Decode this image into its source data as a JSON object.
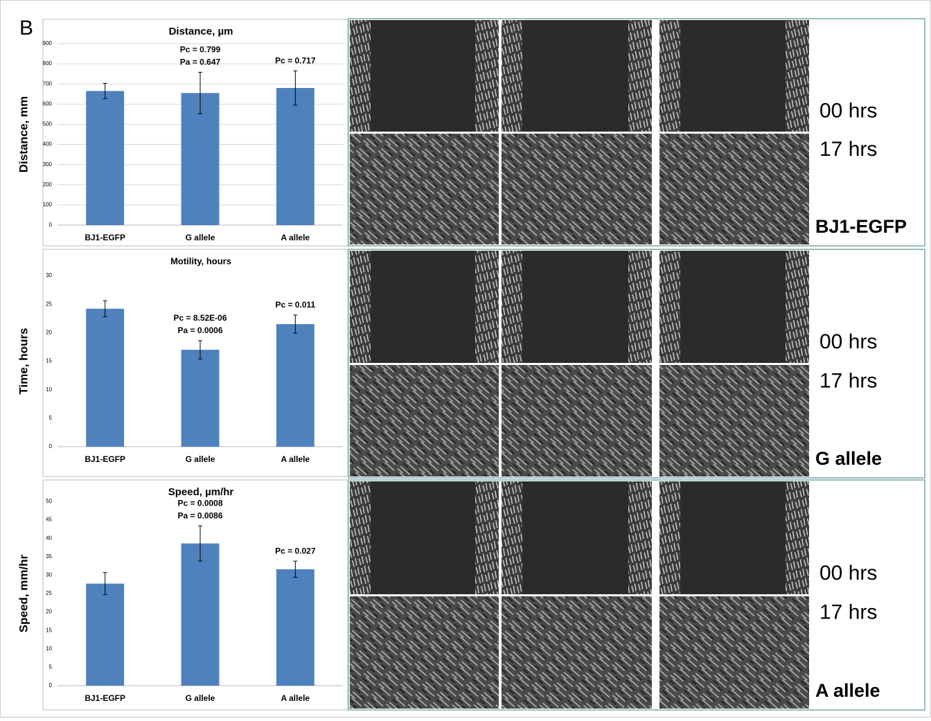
{
  "panel_label": "B",
  "chart_data": [
    {
      "type": "bar",
      "title": "Distance, µm",
      "y_label": "Distance, mm",
      "categories": [
        "BJ1-EGFP",
        "G allele",
        "A allele"
      ],
      "values": [
        665,
        655,
        680
      ],
      "errors": [
        38,
        103,
        85
      ],
      "color": "#4f81bd",
      "ylim": [
        0,
        900
      ],
      "yticks": [
        0,
        100,
        200,
        300,
        400,
        500,
        600,
        700,
        800,
        900
      ],
      "grid": true,
      "annotations": [
        null,
        [
          "Pc = 0.799",
          "Pa = 0.647"
        ],
        [
          "Pc = 0.717"
        ]
      ]
    },
    {
      "type": "bar",
      "title": "Motility, hours",
      "y_label": "Time, hours",
      "categories": [
        "BJ1-EGFP",
        "G allele",
        "A allele"
      ],
      "values": [
        24.2,
        17.0,
        21.5
      ],
      "errors": [
        1.4,
        1.6,
        1.6
      ],
      "color": "#4f81bd",
      "ylim": [
        0,
        30
      ],
      "yticks": [
        0,
        5,
        10,
        15,
        20,
        25,
        30
      ],
      "grid": false,
      "annotations": [
        null,
        [
          "Pc = 8.52E-06",
          "Pa = 0.0006"
        ],
        [
          "Pc = 0.011"
        ]
      ]
    },
    {
      "type": "bar",
      "title": "Speed, µm/hr",
      "y_label": "Speed, mm/hr",
      "categories": [
        "BJ1-EGFP",
        "G allele",
        "A allele"
      ],
      "values": [
        27.7,
        38.6,
        31.6
      ],
      "errors": [
        3.0,
        4.8,
        2.2
      ],
      "color": "#4f81bd",
      "ylim": [
        0,
        50
      ],
      "yticks": [
        0,
        5,
        10,
        15,
        20,
        25,
        30,
        35,
        40,
        45,
        50
      ],
      "grid": false,
      "annotations": [
        null,
        [
          "Pc = 0.0008",
          "Pa = 0.0086"
        ],
        [
          "Pc = 0.027"
        ]
      ]
    }
  ],
  "image_rows": [
    {
      "time_labels": [
        "00 hrs",
        "17 hrs"
      ],
      "name": "BJ1-EGFP"
    },
    {
      "time_labels": [
        "00 hrs",
        "17 hrs"
      ],
      "name": "G allele"
    },
    {
      "time_labels": [
        "00 hrs",
        "17 hrs"
      ],
      "name": "A allele"
    }
  ]
}
